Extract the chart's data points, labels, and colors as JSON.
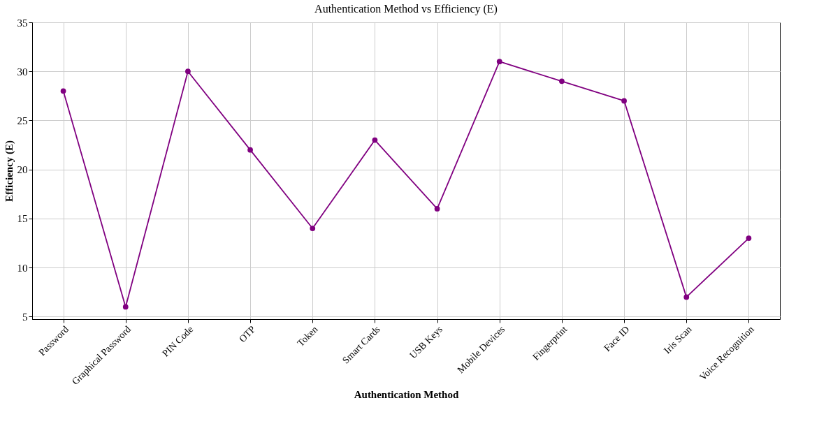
{
  "chart_data": {
    "type": "line",
    "title": "Authentication Method vs Efficiency (E)",
    "xlabel": "Authentication Method",
    "ylabel": "Efficiency (E)",
    "categories": [
      "Password",
      "Graphical Password",
      "PIN Code",
      "OTP",
      "Token",
      "Smart Cards",
      "USB Keys",
      "Mobile Devices",
      "Fingerprint",
      "Face ID",
      "Iris Scan",
      "Voice Recognition"
    ],
    "series": [
      {
        "color": "#800080",
        "values": [
          28,
          6,
          30,
          22,
          14,
          23,
          16,
          31,
          29,
          27,
          7,
          13
        ]
      }
    ],
    "ylim": [
      4.75,
      35
    ],
    "yticks": [
      5,
      10,
      15,
      20,
      25,
      30,
      35
    ],
    "grid": true,
    "marker": "circle",
    "line_style": "solid"
  }
}
